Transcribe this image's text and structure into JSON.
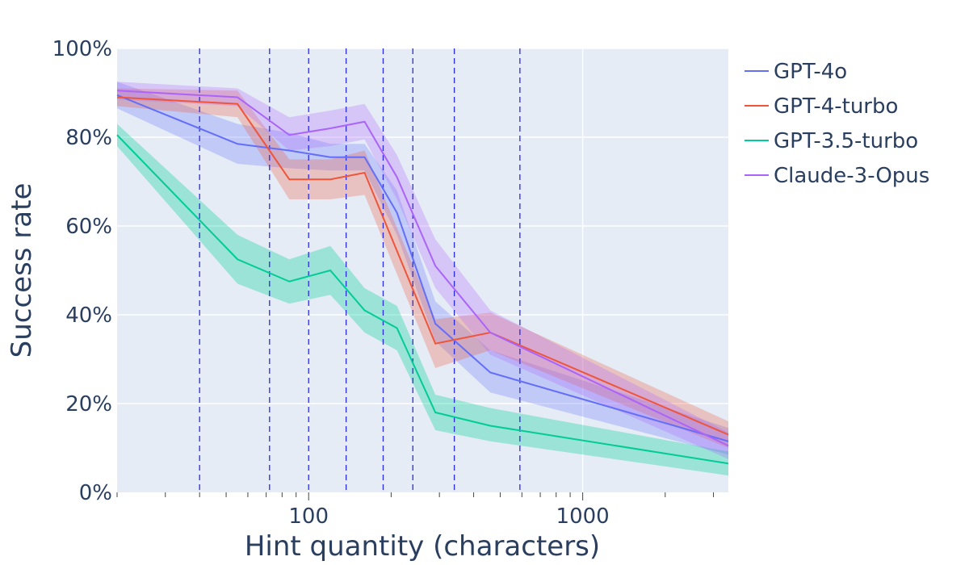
{
  "chart_data": {
    "type": "line",
    "title": "",
    "xlabel": "Hint quantity (characters)",
    "ylabel": "Success rate",
    "x_scale": "log",
    "xlim": [
      20,
      3400
    ],
    "ylim": [
      0,
      1
    ],
    "x_ticks": [
      {
        "value": 100,
        "label": "100"
      },
      {
        "value": 1000,
        "label": "1000"
      }
    ],
    "y_ticks": [
      {
        "value": 0,
        "label": "0%"
      },
      {
        "value": 0.2,
        "label": "20%"
      },
      {
        "value": 0.4,
        "label": "40%"
      },
      {
        "value": 0.6,
        "label": "60%"
      },
      {
        "value": 0.8,
        "label": "80%"
      },
      {
        "value": 1.0,
        "label": "100%"
      }
    ],
    "grid": true,
    "legend_position": "right",
    "vlines": [
      40,
      72,
      100,
      137,
      187,
      240,
      340,
      590
    ],
    "series": [
      {
        "name": "GPT-4o",
        "color": "#636efa",
        "band_color": "rgba(99,110,250,0.28)",
        "x": [
          20,
          55,
          85,
          120,
          160,
          210,
          290,
          460,
          3400
        ],
        "y": [
          0.895,
          0.785,
          0.77,
          0.755,
          0.755,
          0.63,
          0.38,
          0.27,
          0.115
        ],
        "lower": [
          0.865,
          0.74,
          0.73,
          0.725,
          0.725,
          0.58,
          0.34,
          0.225,
          0.085
        ],
        "upper": [
          0.925,
          0.83,
          0.81,
          0.785,
          0.785,
          0.68,
          0.43,
          0.32,
          0.145
        ]
      },
      {
        "name": "GPT-4-turbo",
        "color": "#ef553b",
        "band_color": "rgba(239,85,59,0.28)",
        "x": [
          20,
          55,
          85,
          120,
          160,
          290,
          460,
          3400
        ],
        "y": [
          0.89,
          0.875,
          0.705,
          0.705,
          0.72,
          0.335,
          0.36,
          0.13
        ],
        "lower": [
          0.87,
          0.845,
          0.66,
          0.66,
          0.67,
          0.28,
          0.32,
          0.1
        ],
        "upper": [
          0.91,
          0.905,
          0.75,
          0.75,
          0.77,
          0.39,
          0.405,
          0.16
        ]
      },
      {
        "name": "GPT-3.5-turbo",
        "color": "#00cc96",
        "band_color": "rgba(0,204,150,0.32)",
        "x": [
          20,
          55,
          85,
          120,
          160,
          210,
          290,
          460,
          3400
        ],
        "y": [
          0.805,
          0.525,
          0.475,
          0.5,
          0.41,
          0.37,
          0.18,
          0.15,
          0.065
        ],
        "lower": [
          0.78,
          0.47,
          0.425,
          0.445,
          0.36,
          0.32,
          0.14,
          0.115,
          0.038
        ],
        "upper": [
          0.83,
          0.58,
          0.525,
          0.555,
          0.46,
          0.42,
          0.22,
          0.19,
          0.092
        ]
      },
      {
        "name": "Claude-3-Opus",
        "color": "#ab63fa",
        "band_color": "rgba(171,99,250,0.28)",
        "x": [
          20,
          55,
          85,
          120,
          160,
          210,
          290,
          460,
          3400
        ],
        "y": [
          0.905,
          0.89,
          0.805,
          0.82,
          0.835,
          0.71,
          0.51,
          0.36,
          0.105
        ],
        "lower": [
          0.885,
          0.87,
          0.77,
          0.78,
          0.795,
          0.66,
          0.46,
          0.31,
          0.075
        ],
        "upper": [
          0.925,
          0.91,
          0.845,
          0.86,
          0.875,
          0.76,
          0.57,
          0.41,
          0.135
        ]
      }
    ]
  }
}
